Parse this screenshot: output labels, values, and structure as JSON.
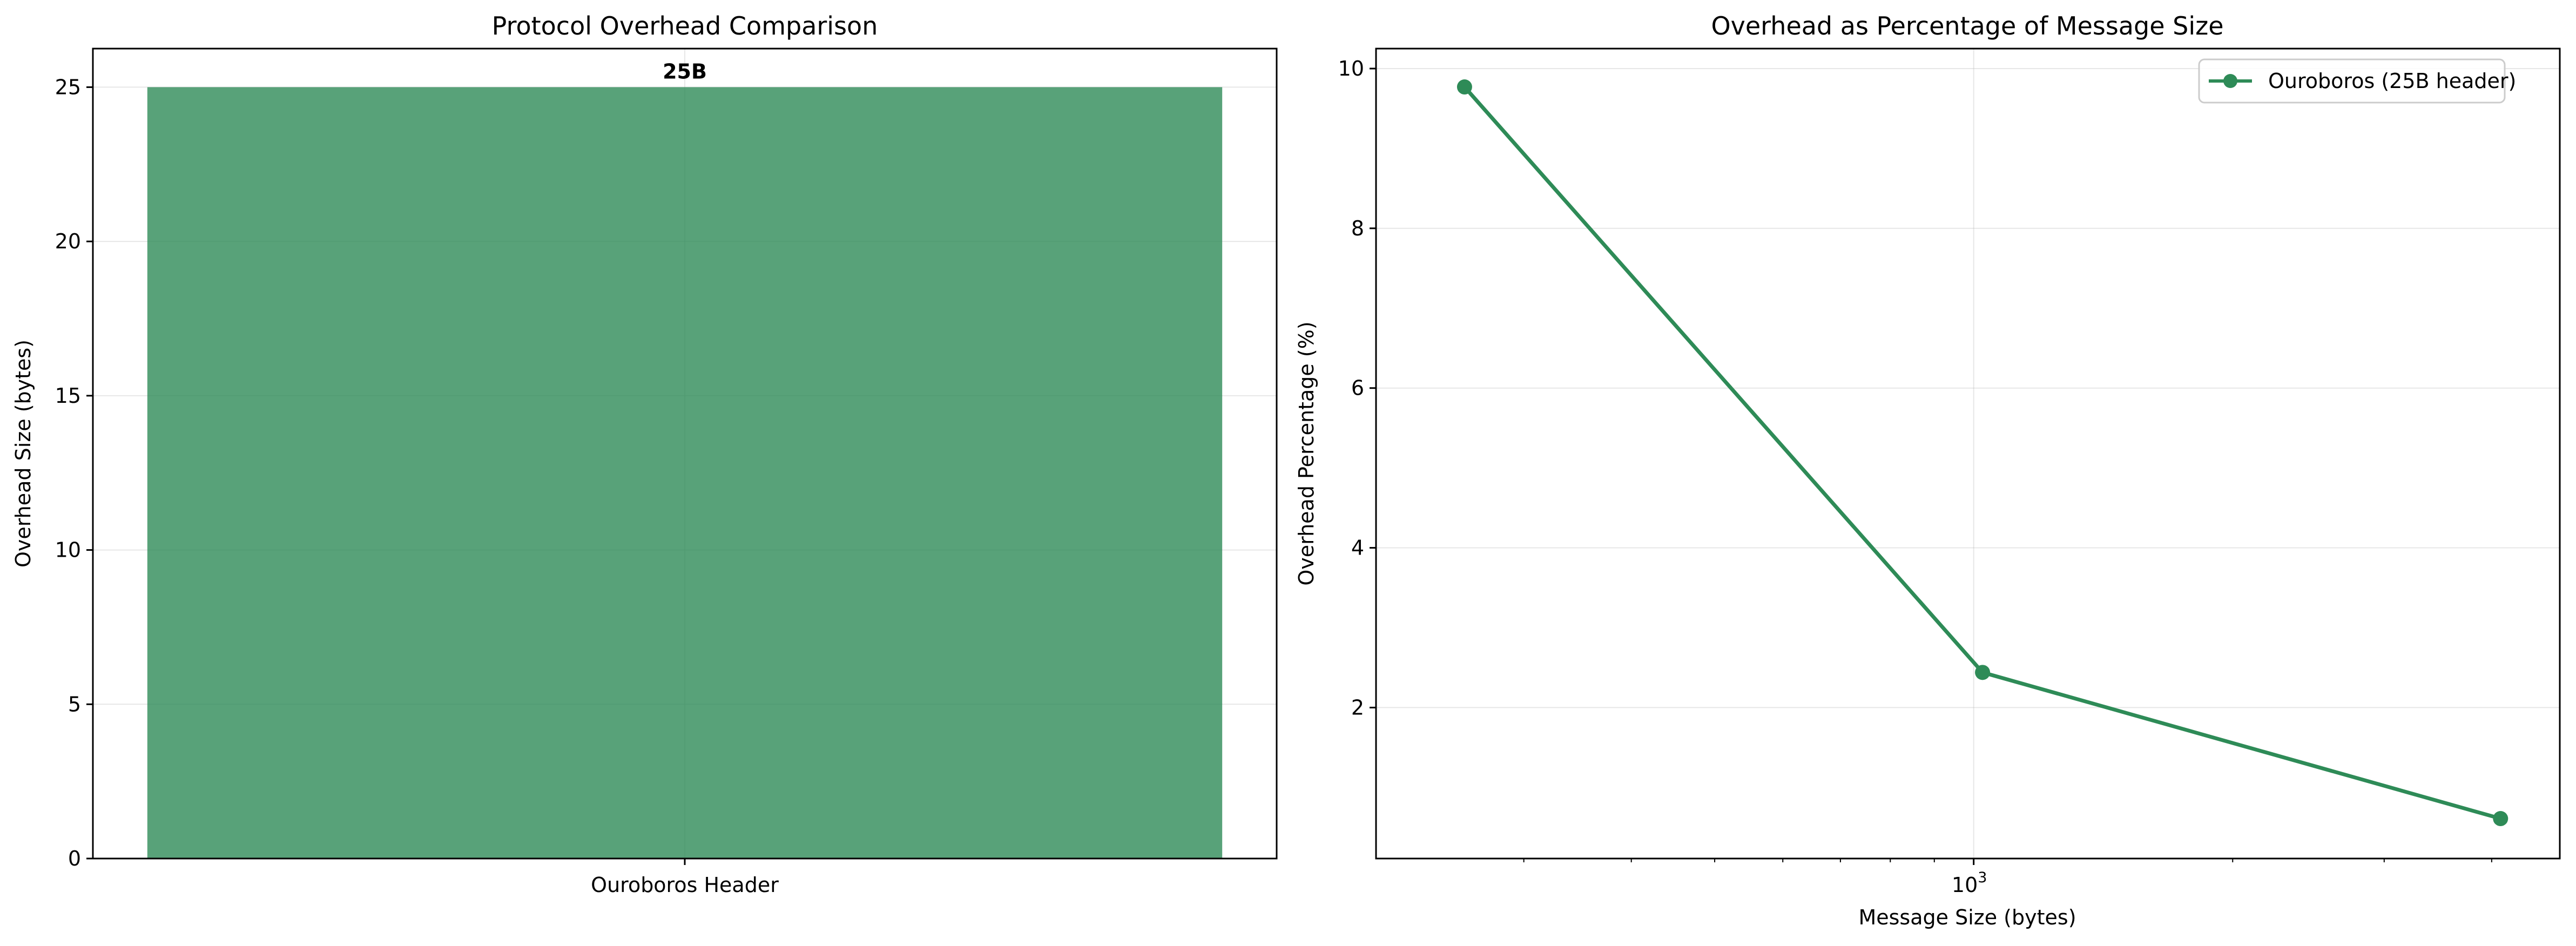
{
  "chart_data": [
    {
      "type": "bar",
      "title": "Protocol Overhead Comparison",
      "xlabel": "",
      "ylabel": "Overhead Size (bytes)",
      "categories": [
        "Ouroboros Header"
      ],
      "values": [
        25
      ],
      "data_labels": [
        "25B"
      ],
      "ylim": [
        0,
        26.25
      ],
      "yticks": [
        0,
        5,
        10,
        15,
        20,
        25
      ],
      "grid": true,
      "color": "#2e8b57"
    },
    {
      "type": "line",
      "title": "Overhead as Percentage of Message Size",
      "xlabel": "Message Size (bytes)",
      "ylabel": "Overhead Percentage (%)",
      "xscale": "log",
      "xlim": [
        202,
        4800
      ],
      "ylim": [
        0.11,
        10.25
      ],
      "yticks": [
        2,
        4,
        6,
        8,
        10
      ],
      "xtick_label": "10",
      "xtick_exponent": "3",
      "grid": true,
      "legend_position": "top-right",
      "series": [
        {
          "name": "Ouroboros (25B header)",
          "x": [
            256,
            1024,
            4096
          ],
          "y": [
            9.77,
            2.44,
            0.61
          ],
          "color": "#2e8b57",
          "marker": "circle"
        }
      ]
    }
  ]
}
